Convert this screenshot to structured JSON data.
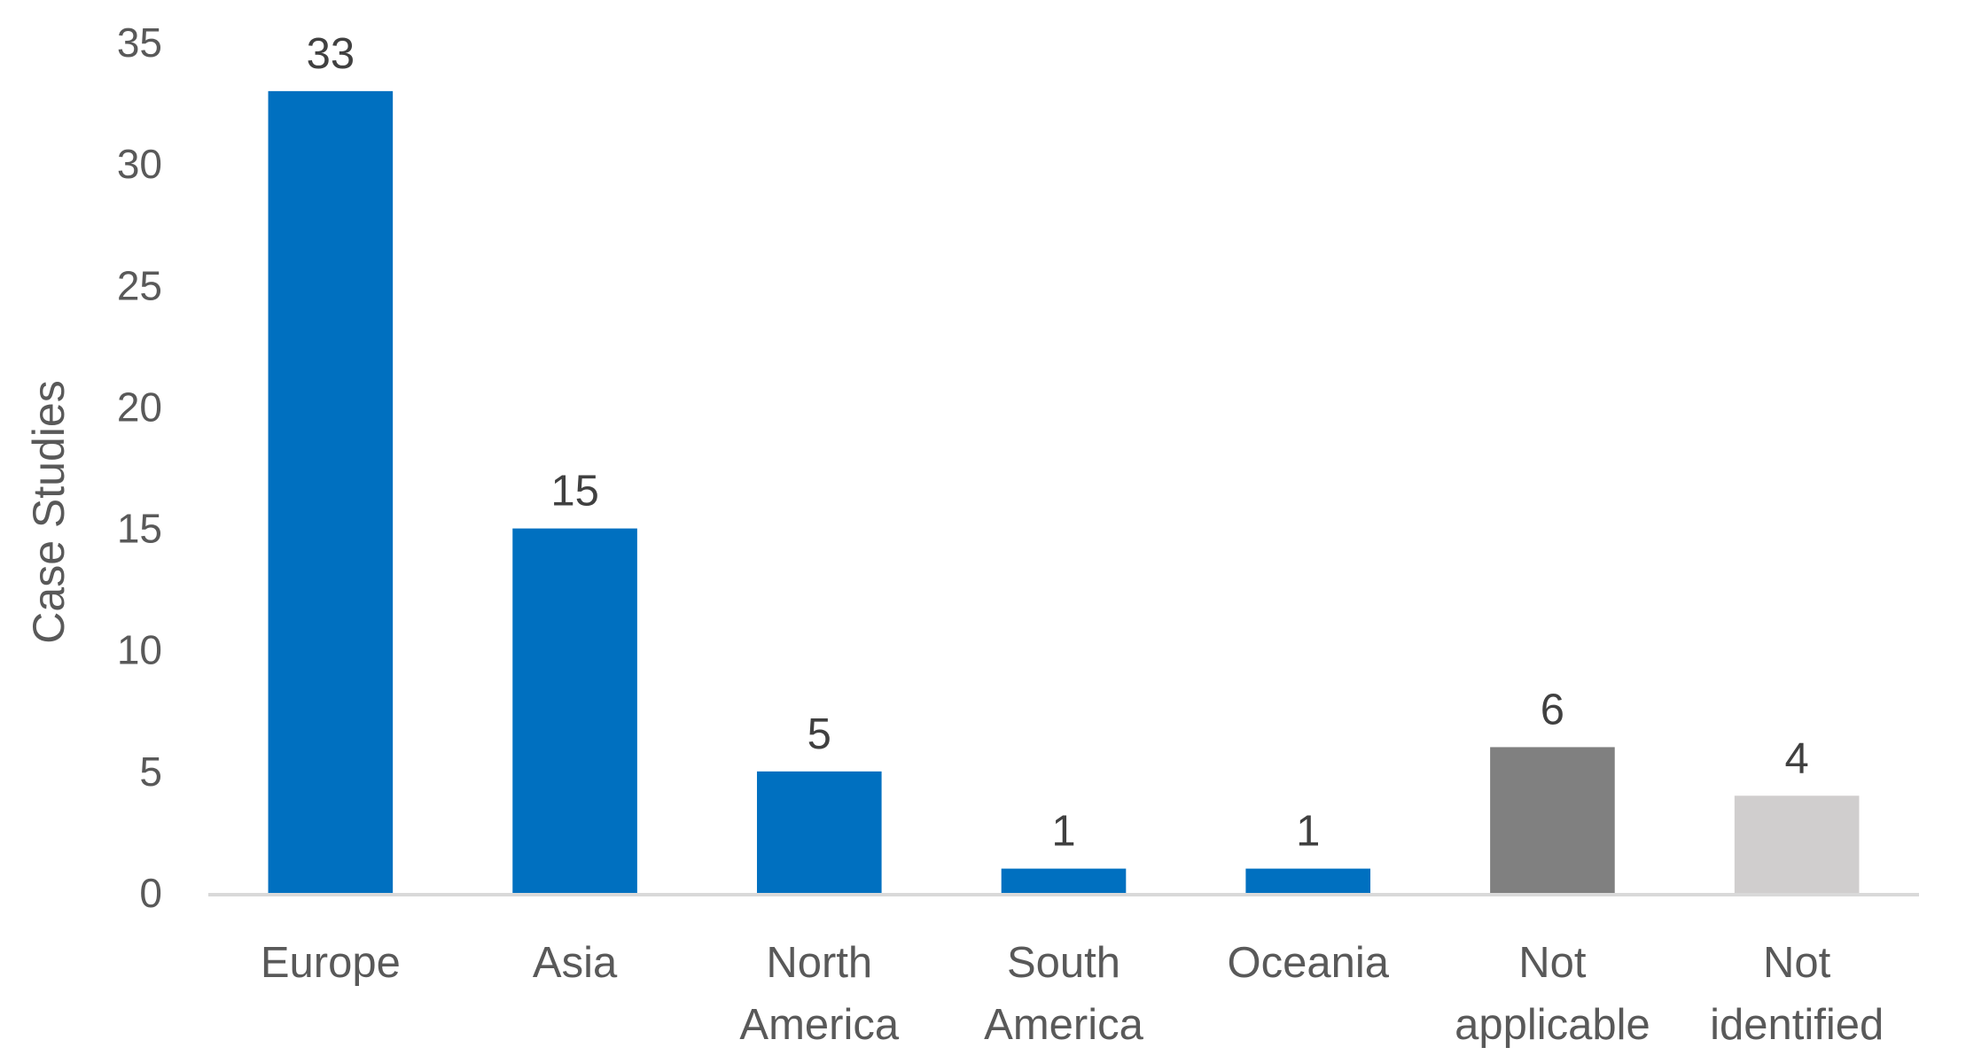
{
  "chart_data": {
    "type": "bar",
    "title": "",
    "xlabel": "",
    "ylabel": "Case Studies",
    "ylim": [
      0,
      35
    ],
    "yticks": [
      0,
      5,
      10,
      15,
      20,
      25,
      30,
      35
    ],
    "grid": false,
    "legend": "none",
    "categories": [
      [
        "Europe"
      ],
      [
        "Asia"
      ],
      [
        "North",
        "America"
      ],
      [
        "South",
        "America"
      ],
      [
        "Oceania"
      ],
      [
        "Not",
        "applicable"
      ],
      [
        "Not",
        "identified"
      ]
    ],
    "values": [
      33,
      15,
      5,
      1,
      1,
      6,
      4
    ],
    "bar_colors": [
      "#0070C0",
      "#0070C0",
      "#0070C0",
      "#0070C0",
      "#0070C0",
      "#808080",
      "#D0CECE"
    ],
    "data_labels": [
      "33",
      "15",
      "5",
      "1",
      "1",
      "6",
      "4"
    ]
  },
  "colors": {
    "axis_line": "#D9D9D9"
  }
}
